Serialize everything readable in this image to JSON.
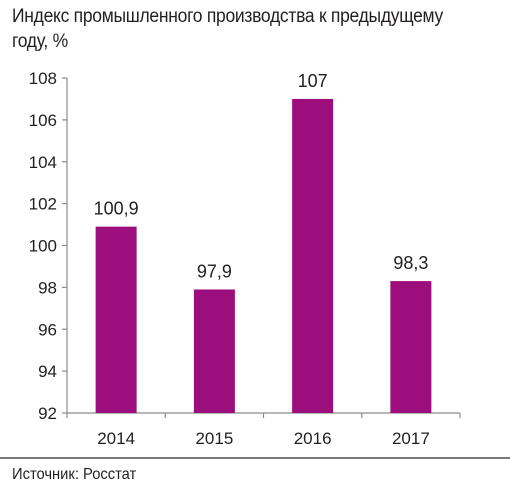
{
  "title": "Индекс промышленного производства к предыдущему году, %",
  "source": "Источник: Росстат",
  "colors": {
    "bar": "#9c0e7c",
    "axis": "#8c8c8c"
  },
  "chart_data": {
    "type": "bar",
    "categories": [
      "2014",
      "2015",
      "2016",
      "2017"
    ],
    "values": [
      100.9,
      97.9,
      107,
      98.3
    ],
    "data_labels": [
      "100,9",
      "97,9",
      "107",
      "98,3"
    ],
    "yticks": [
      "92",
      "94",
      "96",
      "98",
      "100",
      "102",
      "104",
      "106",
      "108"
    ],
    "ylim": [
      92,
      108
    ],
    "grid": false,
    "legend": "none"
  }
}
